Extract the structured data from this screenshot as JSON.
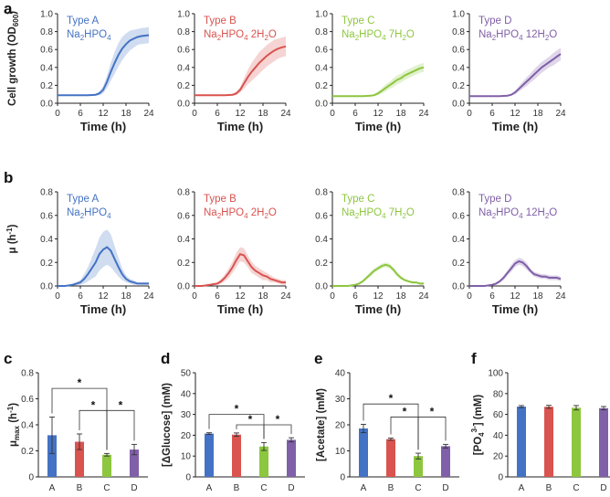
{
  "panel_labels": {
    "a": "a",
    "b": "b",
    "c": "c",
    "d": "d",
    "e": "e",
    "f": "f"
  },
  "colors": {
    "A": "#4472C4",
    "B": "#D9534F",
    "C": "#8DC63F",
    "D": "#8060A8"
  },
  "types": [
    {
      "key": "A",
      "name": "Type A",
      "formula_pre": "Na",
      "formula_sub1": "2",
      "formula_mid": "HPO",
      "formula_sub2": "4",
      "formula_post": ""
    },
    {
      "key": "B",
      "name": "Type B",
      "formula_pre": "Na",
      "formula_sub1": "2",
      "formula_mid": "HPO",
      "formula_sub2": "4",
      "formula_post": " 2H",
      "formula_sub3": "2",
      "formula_end": "O"
    },
    {
      "key": "C",
      "name": "Type C",
      "formula_pre": "Na",
      "formula_sub1": "2",
      "formula_mid": "HPO",
      "formula_sub2": "4",
      "formula_post": " 7H",
      "formula_sub3": "2",
      "formula_end": "O"
    },
    {
      "key": "D",
      "name": "Type D",
      "formula_pre": "Na",
      "formula_sub1": "2",
      "formula_mid": "HPO",
      "formula_sub2": "4",
      "formula_post": " 12H",
      "formula_sub3": "2",
      "formula_end": "O"
    }
  ],
  "chart_data": [
    {
      "id": "a",
      "type": "line",
      "title": "",
      "xlabel": "Time (h)",
      "ylabel_main": "Cell growth (OD",
      "ylabel_sub": "600",
      "ylabel_end": ")",
      "xlim": [
        0,
        24
      ],
      "ylim": [
        0,
        1.0
      ],
      "xticks": [
        0,
        6,
        12,
        18,
        24
      ],
      "yticks": [
        0,
        0.2,
        0.4,
        0.6,
        0.8,
        1.0
      ],
      "ytick_labels": [
        "0.0",
        "0.2",
        "0.4",
        "0.6",
        "0.8",
        "1.0"
      ],
      "x": [
        0,
        2,
        4,
        6,
        8,
        10,
        11,
        12,
        13,
        14,
        15,
        16,
        17,
        18,
        19,
        20,
        21,
        22,
        23,
        24
      ],
      "series": [
        {
          "name": "Type A",
          "key": "A",
          "values": [
            0.09,
            0.09,
            0.09,
            0.09,
            0.09,
            0.095,
            0.11,
            0.15,
            0.24,
            0.35,
            0.45,
            0.54,
            0.61,
            0.66,
            0.7,
            0.72,
            0.74,
            0.75,
            0.755,
            0.76
          ],
          "spread": [
            0.005,
            0.005,
            0.005,
            0.005,
            0.005,
            0.01,
            0.02,
            0.04,
            0.07,
            0.1,
            0.12,
            0.13,
            0.13,
            0.12,
            0.11,
            0.1,
            0.09,
            0.09,
            0.09,
            0.09
          ]
        },
        {
          "name": "Type B",
          "key": "B",
          "values": [
            0.09,
            0.09,
            0.09,
            0.09,
            0.09,
            0.095,
            0.11,
            0.15,
            0.22,
            0.29,
            0.35,
            0.4,
            0.45,
            0.49,
            0.53,
            0.56,
            0.59,
            0.61,
            0.625,
            0.635
          ],
          "spread": [
            0.005,
            0.005,
            0.005,
            0.005,
            0.005,
            0.01,
            0.02,
            0.03,
            0.06,
            0.08,
            0.1,
            0.11,
            0.12,
            0.12,
            0.12,
            0.12,
            0.12,
            0.11,
            0.11,
            0.11
          ]
        },
        {
          "name": "Type C",
          "key": "C",
          "values": [
            0.08,
            0.08,
            0.08,
            0.08,
            0.08,
            0.085,
            0.09,
            0.11,
            0.14,
            0.17,
            0.2,
            0.23,
            0.26,
            0.28,
            0.31,
            0.33,
            0.35,
            0.37,
            0.39,
            0.4
          ],
          "spread": [
            0.005,
            0.005,
            0.005,
            0.005,
            0.005,
            0.005,
            0.01,
            0.02,
            0.03,
            0.04,
            0.04,
            0.05,
            0.05,
            0.05,
            0.05,
            0.05,
            0.05,
            0.05,
            0.05,
            0.05
          ]
        },
        {
          "name": "Type D",
          "key": "D",
          "values": [
            0.08,
            0.08,
            0.08,
            0.08,
            0.08,
            0.085,
            0.095,
            0.12,
            0.16,
            0.2,
            0.24,
            0.28,
            0.32,
            0.36,
            0.4,
            0.43,
            0.46,
            0.49,
            0.52,
            0.55
          ],
          "spread": [
            0.005,
            0.005,
            0.005,
            0.005,
            0.005,
            0.005,
            0.01,
            0.02,
            0.03,
            0.04,
            0.05,
            0.05,
            0.06,
            0.06,
            0.06,
            0.06,
            0.06,
            0.07,
            0.07,
            0.07
          ]
        }
      ]
    },
    {
      "id": "b",
      "type": "line",
      "title": "",
      "xlabel": "Time (h)",
      "ylabel_main": "μ (h",
      "ylabel_sup": "-1",
      "ylabel_end": ")",
      "xlim": [
        0,
        24
      ],
      "ylim": [
        0,
        0.8
      ],
      "xticks": [
        0,
        6,
        12,
        18,
        24
      ],
      "yticks": [
        0,
        0.2,
        0.4,
        0.6,
        0.8
      ],
      "ytick_labels": [
        "0.0",
        "0.2",
        "0.4",
        "0.6",
        "0.8"
      ],
      "x": [
        0,
        2,
        4,
        6,
        7,
        8,
        9,
        10,
        11,
        12,
        13,
        14,
        15,
        16,
        17,
        18,
        19,
        20,
        21,
        22,
        23,
        24
      ],
      "series": [
        {
          "name": "Type A",
          "key": "A",
          "values": [
            0.0,
            0.0,
            0.01,
            0.03,
            0.06,
            0.1,
            0.15,
            0.2,
            0.27,
            0.31,
            0.33,
            0.3,
            0.23,
            0.16,
            0.1,
            0.06,
            0.04,
            0.03,
            0.02,
            0.02,
            0.02,
            0.02
          ],
          "spread": [
            0.0,
            0.0,
            0.01,
            0.02,
            0.04,
            0.06,
            0.09,
            0.12,
            0.14,
            0.15,
            0.15,
            0.14,
            0.11,
            0.08,
            0.05,
            0.03,
            0.02,
            0.02,
            0.01,
            0.01,
            0.01,
            0.01
          ]
        },
        {
          "name": "Type B",
          "key": "B",
          "values": [
            0.0,
            0.0,
            0.01,
            0.02,
            0.04,
            0.07,
            0.11,
            0.16,
            0.22,
            0.27,
            0.26,
            0.21,
            0.16,
            0.13,
            0.11,
            0.09,
            0.08,
            0.06,
            0.05,
            0.04,
            0.03,
            0.03
          ],
          "spread": [
            0.0,
            0.0,
            0.005,
            0.01,
            0.02,
            0.03,
            0.04,
            0.05,
            0.06,
            0.06,
            0.06,
            0.05,
            0.05,
            0.04,
            0.04,
            0.04,
            0.03,
            0.03,
            0.02,
            0.02,
            0.02,
            0.02
          ]
        },
        {
          "name": "Type C",
          "key": "C",
          "values": [
            0.0,
            0.0,
            0.0,
            0.01,
            0.02,
            0.04,
            0.07,
            0.1,
            0.13,
            0.15,
            0.17,
            0.18,
            0.17,
            0.14,
            0.1,
            0.07,
            0.05,
            0.04,
            0.03,
            0.03,
            0.02,
            0.02
          ],
          "spread": [
            0.0,
            0.0,
            0.0,
            0.005,
            0.01,
            0.01,
            0.015,
            0.02,
            0.02,
            0.02,
            0.02,
            0.02,
            0.02,
            0.02,
            0.02,
            0.015,
            0.01,
            0.01,
            0.01,
            0.01,
            0.01,
            0.01
          ]
        },
        {
          "name": "Type D",
          "key": "D",
          "values": [
            0.0,
            0.0,
            0.0,
            0.01,
            0.02,
            0.04,
            0.07,
            0.11,
            0.15,
            0.19,
            0.21,
            0.2,
            0.17,
            0.13,
            0.1,
            0.09,
            0.08,
            0.08,
            0.07,
            0.07,
            0.07,
            0.06
          ],
          "spread": [
            0.0,
            0.0,
            0.0,
            0.005,
            0.01,
            0.01,
            0.02,
            0.02,
            0.03,
            0.03,
            0.03,
            0.03,
            0.03,
            0.02,
            0.02,
            0.02,
            0.02,
            0.02,
            0.02,
            0.02,
            0.02,
            0.02
          ]
        }
      ]
    },
    {
      "id": "c",
      "type": "bar",
      "ylabel_main": "μ",
      "ylabel_sub": "max",
      "ylabel_end": " (h",
      "ylabel_sup": "-1",
      "ylabel_close": ")",
      "categories": [
        "A",
        "B",
        "C",
        "D"
      ],
      "values": [
        0.32,
        0.27,
        0.17,
        0.21
      ],
      "errors": [
        0.14,
        0.06,
        0.01,
        0.04
      ],
      "ylim": [
        0,
        0.8
      ],
      "yticks": [
        0,
        0.2,
        0.4,
        0.6,
        0.8
      ],
      "ytick_labels": [
        "0",
        "0.2",
        "0.4",
        "0.6",
        "0.8"
      ],
      "significance": [
        {
          "from": "A",
          "to": "C",
          "label": "*",
          "level": 0.68
        },
        {
          "from": "B",
          "to": "C",
          "label": "*",
          "level": 0.51
        },
        {
          "from": "C",
          "to": "D",
          "label": "*",
          "level": 0.51
        }
      ]
    },
    {
      "id": "d",
      "type": "bar",
      "ylabel_main": "[ΔGlucose] (mM)",
      "categories": [
        "A",
        "B",
        "C",
        "D"
      ],
      "values": [
        20.8,
        20.3,
        14.6,
        17.8
      ],
      "errors": [
        0.4,
        0.8,
        1.9,
        1.0
      ],
      "ylim": [
        0,
        50
      ],
      "yticks": [
        0,
        10,
        20,
        30,
        40,
        50
      ],
      "ytick_labels": [
        "0",
        "10",
        "20",
        "30",
        "40",
        "50"
      ],
      "significance": [
        {
          "from": "A",
          "to": "C",
          "label": "*",
          "level": 30
        },
        {
          "from": "B",
          "to": "C",
          "label": "*",
          "level": 25
        },
        {
          "from": "C",
          "to": "D",
          "label": "*",
          "level": 25
        }
      ]
    },
    {
      "id": "e",
      "type": "bar",
      "ylabel_main": "[Acetate] (mM)",
      "categories": [
        "A",
        "B",
        "C",
        "D"
      ],
      "values": [
        18.6,
        14.5,
        8.0,
        11.8
      ],
      "errors": [
        1.6,
        0.4,
        1.1,
        0.7
      ],
      "ylim": [
        0,
        40
      ],
      "yticks": [
        0,
        10,
        20,
        30,
        40
      ],
      "ytick_labels": [
        "0",
        "10",
        "20",
        "30",
        "40"
      ],
      "significance": [
        {
          "from": "A",
          "to": "C",
          "label": "*",
          "level": 28
        },
        {
          "from": "B",
          "to": "C",
          "label": "*",
          "level": 23
        },
        {
          "from": "C",
          "to": "D",
          "label": "*",
          "level": 23
        }
      ]
    },
    {
      "id": "f",
      "type": "bar",
      "ylabel_main": "[PO",
      "ylabel_sub": "4",
      "ylabel_sup": "3-",
      "ylabel_end": "] (mM)",
      "categories": [
        "A",
        "B",
        "C",
        "D"
      ],
      "values": [
        67.5,
        67.3,
        66.4,
        66.0
      ],
      "errors": [
        1.0,
        1.4,
        2.1,
        1.6
      ],
      "ylim": [
        0,
        100
      ],
      "yticks": [
        0,
        20,
        40,
        60,
        80,
        100
      ],
      "ytick_labels": [
        "0",
        "20",
        "40",
        "60",
        "80",
        "100"
      ],
      "significance": []
    }
  ]
}
